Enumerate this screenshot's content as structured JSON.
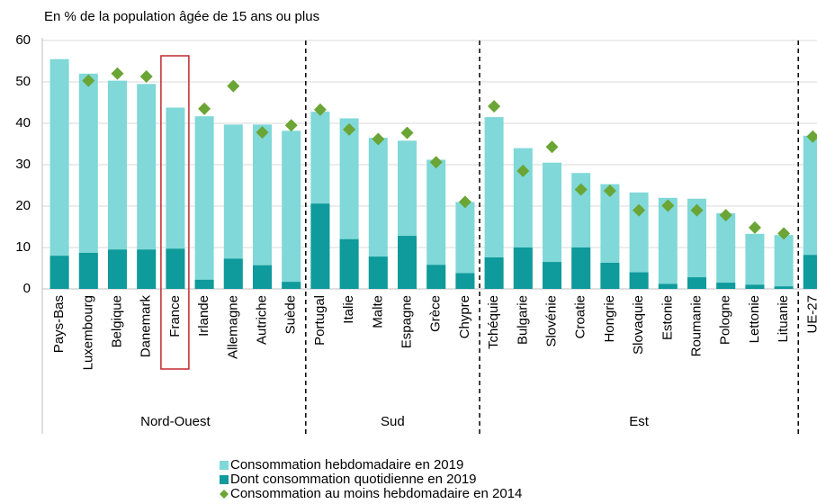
{
  "chart_data": {
    "type": "bar",
    "title": "En % de la population âgée de 15 ans ou plus",
    "categories": [
      "Pays-Bas",
      "Luxembourg",
      "Belgique",
      "Danemark",
      "France",
      "Irlande",
      "Allemagne",
      "Autriche",
      "Suède",
      "Portugal",
      "Italie",
      "Malte",
      "Espagne",
      "Grèce",
      "Chypre",
      "Tchéquie",
      "Bulgarie",
      "Slovénie",
      "Croatie",
      "Hongrie",
      "Slovaquie",
      "Estonie",
      "Roumanie",
      "Pologne",
      "Lettonie",
      "Lituanie",
      "UE-27"
    ],
    "groups": [
      {
        "label": "Nord-Ouest",
        "start": 0,
        "end": 8
      },
      {
        "label": "Sud",
        "start": 9,
        "end": 14
      },
      {
        "label": "Est",
        "start": 15,
        "end": 25
      }
    ],
    "series": [
      {
        "name": "Consommation hebdomadaire en 2019",
        "color": "#80d8d8",
        "kind": "bar",
        "values": [
          55.5,
          52,
          50.3,
          49.5,
          43.8,
          41.7,
          39.7,
          39.7,
          38.2,
          42.8,
          41.2,
          36.5,
          35.8,
          31.2,
          21,
          41.5,
          34,
          30.5,
          28,
          25.3,
          23.3,
          22,
          21.8,
          18.3,
          13.3,
          13,
          37
        ]
      },
      {
        "name": "Dont consommation quotidienne en 2019",
        "color": "#0f9a9c",
        "kind": "bar",
        "values": [
          8,
          8.7,
          9.5,
          9.5,
          9.7,
          2.2,
          7.3,
          5.7,
          1.7,
          20.6,
          12,
          7.8,
          12.8,
          5.8,
          3.8,
          7.6,
          10,
          6.5,
          10,
          6.3,
          4,
          1.2,
          2.8,
          1.5,
          1,
          0.6,
          8.2
        ]
      },
      {
        "name": "Consommation au moins hebdomadaire en 2014",
        "color": "#6aa535",
        "kind": "marker",
        "values": [
          null,
          50.3,
          52,
          51.3,
          null,
          43.5,
          49,
          37.8,
          39.5,
          43.3,
          38.5,
          36.2,
          37.7,
          30.6,
          21,
          44.1,
          28.5,
          34.3,
          24,
          23.7,
          19,
          20.1,
          19,
          17.8,
          14.8,
          13.4,
          36.8
        ]
      }
    ],
    "highlight": "France",
    "ylim": [
      0,
      60
    ],
    "yticks": [
      0,
      10,
      20,
      30,
      40,
      50,
      60
    ]
  }
}
